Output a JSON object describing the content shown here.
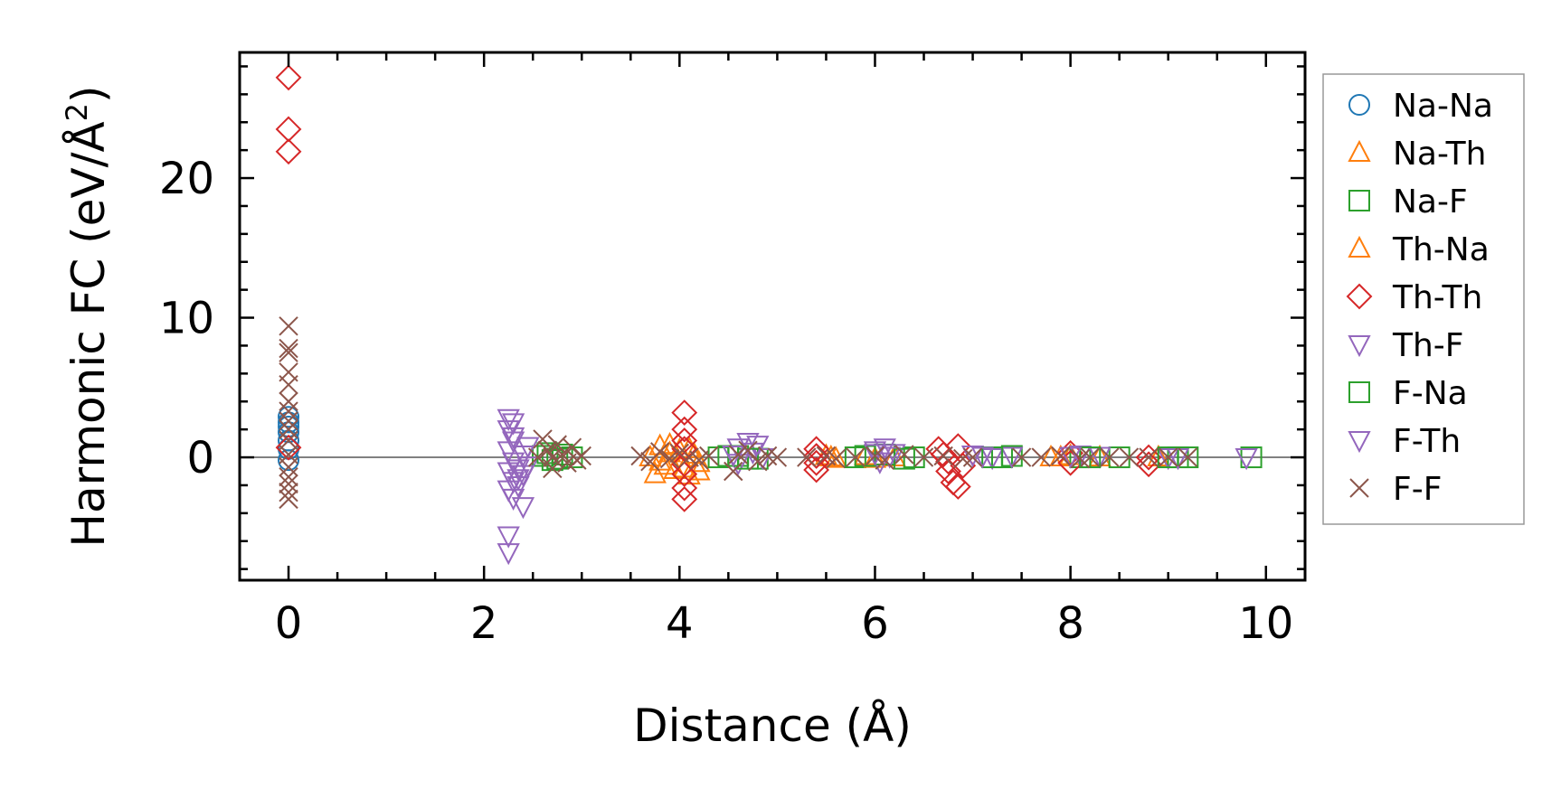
{
  "chart_data": {
    "type": "scatter",
    "xlabel": "Distance (Å)",
    "ylabel_main": "Harmonic FC (eV/Å",
    "ylabel_sup": "2",
    "ylabel_close": ")",
    "xlim": [
      -0.5,
      10.4
    ],
    "ylim": [
      -8.8,
      29
    ],
    "xticks": [
      0,
      2,
      4,
      6,
      8,
      10
    ],
    "yticks": [
      0,
      10,
      20
    ],
    "xtick_labels": [
      "0",
      "2",
      "4",
      "6",
      "8",
      "10"
    ],
    "ytick_labels": [
      "0",
      "10",
      "20"
    ],
    "zero_line": true,
    "grid": false,
    "legend_position": "outside-right",
    "series": [
      {
        "name": "Na-Na",
        "marker": "circle",
        "color": "#1f77b4",
        "points": [
          [
            0,
            2.2
          ],
          [
            0,
            2.5
          ],
          [
            0,
            1.8
          ],
          [
            0,
            2.9
          ],
          [
            0,
            1.2
          ],
          [
            0,
            -0.2
          ],
          [
            0,
            0.6
          ]
        ]
      },
      {
        "name": "Na-Th",
        "marker": "triangle-up",
        "color": "#ff7f0e",
        "points": [
          [
            3.75,
            -1.2
          ],
          [
            3.8,
            0.8
          ],
          [
            3.85,
            -0.6
          ],
          [
            3.9,
            0.3
          ],
          [
            3.95,
            -0.9
          ],
          [
            4.0,
            0.5
          ],
          [
            4.1,
            -1.3
          ],
          [
            4.15,
            0.2
          ],
          [
            4.2,
            -0.4
          ],
          [
            3.7,
            0.0
          ],
          [
            5.5,
            0.1
          ],
          [
            5.6,
            -0.1
          ],
          [
            5.9,
            0.1
          ],
          [
            6.2,
            0.0
          ],
          [
            7.8,
            0.0
          ],
          [
            8.0,
            0.1
          ],
          [
            8.3,
            0.0
          ],
          [
            8.9,
            0.0
          ]
        ]
      },
      {
        "name": "Na-F",
        "marker": "square",
        "color": "#2ca02c",
        "points": [
          [
            2.6,
            0.1
          ],
          [
            2.7,
            -0.2
          ],
          [
            2.8,
            0.2
          ],
          [
            2.9,
            0.0
          ],
          [
            4.4,
            0.0
          ],
          [
            4.6,
            0.1
          ],
          [
            4.8,
            -0.1
          ],
          [
            5.8,
            0.0
          ],
          [
            6.1,
            0.2
          ],
          [
            6.4,
            0.0
          ],
          [
            7.3,
            0.0
          ],
          [
            7.4,
            0.1
          ],
          [
            8.1,
            0.0
          ],
          [
            8.5,
            0.0
          ],
          [
            9.1,
            0.0
          ],
          [
            9.2,
            0.0
          ],
          [
            9.85,
            0.0
          ]
        ]
      },
      {
        "name": "Th-Na",
        "marker": "triangle-up",
        "color": "#ff7f0e",
        "points": [
          [
            3.8,
            -0.3
          ],
          [
            3.9,
            0.9
          ],
          [
            4.05,
            -0.8
          ],
          [
            4.1,
            0.6
          ],
          [
            4.2,
            -1.0
          ],
          [
            5.55,
            0.0
          ],
          [
            6.0,
            -0.1
          ],
          [
            7.9,
            0.0
          ]
        ]
      },
      {
        "name": "Th-Th",
        "marker": "diamond",
        "color": "#d62728",
        "points": [
          [
            0,
            27.2
          ],
          [
            0,
            23.5
          ],
          [
            0,
            21.9
          ],
          [
            0,
            0.7
          ],
          [
            4.05,
            3.2
          ],
          [
            4.05,
            2.0
          ],
          [
            4.05,
            1.2
          ],
          [
            4.05,
            0.6
          ],
          [
            4.05,
            -0.5
          ],
          [
            4.05,
            -1.2
          ],
          [
            4.05,
            -2.2
          ],
          [
            4.05,
            -3.0
          ],
          [
            5.4,
            0.6
          ],
          [
            5.4,
            0.1
          ],
          [
            5.4,
            -0.4
          ],
          [
            5.4,
            -0.9
          ],
          [
            6.65,
            0.6
          ],
          [
            6.7,
            0.2
          ],
          [
            6.75,
            -0.3
          ],
          [
            6.75,
            -1.0
          ],
          [
            6.8,
            -1.8
          ],
          [
            6.85,
            -2.1
          ],
          [
            6.85,
            0.8
          ],
          [
            6.9,
            -0.6
          ],
          [
            8.0,
            0.3
          ],
          [
            8.0,
            -0.4
          ],
          [
            8.8,
            -0.5
          ],
          [
            8.8,
            0.0
          ]
        ]
      },
      {
        "name": "Th-F",
        "marker": "triangle-down",
        "color": "#9467bd",
        "points": [
          [
            2.25,
            2.8
          ],
          [
            2.25,
            2.0
          ],
          [
            2.3,
            1.2
          ],
          [
            2.25,
            0.5
          ],
          [
            2.3,
            -0.3
          ],
          [
            2.25,
            -1.0
          ],
          [
            2.3,
            -1.7
          ],
          [
            2.25,
            -2.3
          ],
          [
            2.3,
            -2.9
          ],
          [
            2.35,
            -2.0
          ],
          [
            2.4,
            -1.2
          ],
          [
            2.4,
            -3.5
          ],
          [
            2.45,
            0.8
          ],
          [
            2.45,
            -0.6
          ],
          [
            4.6,
            0.7
          ],
          [
            4.7,
            1.1
          ],
          [
            4.8,
            0.9
          ],
          [
            4.6,
            -0.4
          ],
          [
            4.85,
            0.0
          ],
          [
            6.0,
            0.5
          ],
          [
            6.1,
            0.7
          ],
          [
            6.2,
            0.3
          ],
          [
            6.05,
            -0.3
          ],
          [
            7.0,
            0.2
          ],
          [
            7.2,
            0.0
          ],
          [
            7.4,
            0.1
          ],
          [
            8.1,
            0.2
          ],
          [
            8.3,
            0.1
          ],
          [
            9.0,
            0.0
          ],
          [
            9.8,
            0.0
          ]
        ]
      },
      {
        "name": "F-Na",
        "marker": "square",
        "color": "#2ca02c",
        "points": [
          [
            2.65,
            0.3
          ],
          [
            2.75,
            -0.1
          ],
          [
            4.5,
            0.1
          ],
          [
            4.7,
            -0.1
          ],
          [
            5.9,
            0.1
          ],
          [
            6.3,
            -0.1
          ],
          [
            7.2,
            0.0
          ],
          [
            8.2,
            0.0
          ],
          [
            9.0,
            0.0
          ]
        ]
      },
      {
        "name": "F-Th",
        "marker": "triangle-down",
        "color": "#9467bd",
        "points": [
          [
            2.25,
            -6.8
          ],
          [
            2.25,
            -5.6
          ],
          [
            2.3,
            2.5
          ],
          [
            2.35,
            -1.5
          ],
          [
            2.4,
            0.2
          ],
          [
            2.35,
            -0.8
          ],
          [
            2.3,
            1.5
          ],
          [
            4.75,
            0.4
          ],
          [
            4.55,
            0.2
          ],
          [
            6.0,
            0.3
          ],
          [
            6.15,
            0.1
          ],
          [
            7.1,
            0.1
          ],
          [
            8.0,
            0.1
          ],
          [
            9.1,
            0.0
          ]
        ]
      },
      {
        "name": "F-F",
        "marker": "x",
        "color": "#8c564b",
        "points": [
          [
            0,
            9.4
          ],
          [
            0,
            7.8
          ],
          [
            0,
            7.5
          ],
          [
            0,
            6.1
          ],
          [
            0,
            5.2
          ],
          [
            0,
            4.0
          ],
          [
            0,
            3.3
          ],
          [
            0,
            2.6
          ],
          [
            0,
            2.0
          ],
          [
            0,
            1.2
          ],
          [
            0,
            0.2
          ],
          [
            0,
            -0.7
          ],
          [
            0,
            -1.4
          ],
          [
            0,
            -1.9
          ],
          [
            0,
            -2.5
          ],
          [
            0,
            -3.0
          ],
          [
            2.6,
            1.3
          ],
          [
            2.65,
            0.5
          ],
          [
            2.7,
            -0.8
          ],
          [
            2.75,
            0.9
          ],
          [
            2.8,
            0.2
          ],
          [
            2.85,
            -0.4
          ],
          [
            2.9,
            0.7
          ],
          [
            2.95,
            -0.2
          ],
          [
            3.0,
            0.1
          ],
          [
            2.55,
            0.0
          ],
          [
            2.7,
            0.0
          ],
          [
            3.6,
            0.1
          ],
          [
            3.7,
            -0.3
          ],
          [
            3.8,
            0.4
          ],
          [
            3.9,
            -0.1
          ],
          [
            4.0,
            0.3
          ],
          [
            4.1,
            0.0
          ],
          [
            4.2,
            -0.2
          ],
          [
            4.3,
            0.1
          ],
          [
            4.55,
            -1.0
          ],
          [
            4.6,
            0.2
          ],
          [
            4.7,
            0.5
          ],
          [
            4.8,
            -0.3
          ],
          [
            4.9,
            0.1
          ],
          [
            5.0,
            0.0
          ],
          [
            5.3,
            0.0
          ],
          [
            5.5,
            0.1
          ],
          [
            5.6,
            -0.1
          ],
          [
            5.8,
            0.0
          ],
          [
            6.0,
            0.1
          ],
          [
            6.1,
            -0.2
          ],
          [
            6.3,
            0.2
          ],
          [
            6.5,
            0.0
          ],
          [
            6.7,
            0.1
          ],
          [
            6.9,
            -0.1
          ],
          [
            7.0,
            0.0
          ],
          [
            7.5,
            0.0
          ],
          [
            7.7,
            0.0
          ],
          [
            7.9,
            0.1
          ],
          [
            8.1,
            -0.1
          ],
          [
            8.2,
            0.0
          ],
          [
            8.4,
            0.0
          ],
          [
            8.6,
            0.0
          ],
          [
            8.8,
            0.0
          ],
          [
            9.0,
            0.0
          ],
          [
            9.2,
            0.0
          ]
        ]
      }
    ]
  }
}
